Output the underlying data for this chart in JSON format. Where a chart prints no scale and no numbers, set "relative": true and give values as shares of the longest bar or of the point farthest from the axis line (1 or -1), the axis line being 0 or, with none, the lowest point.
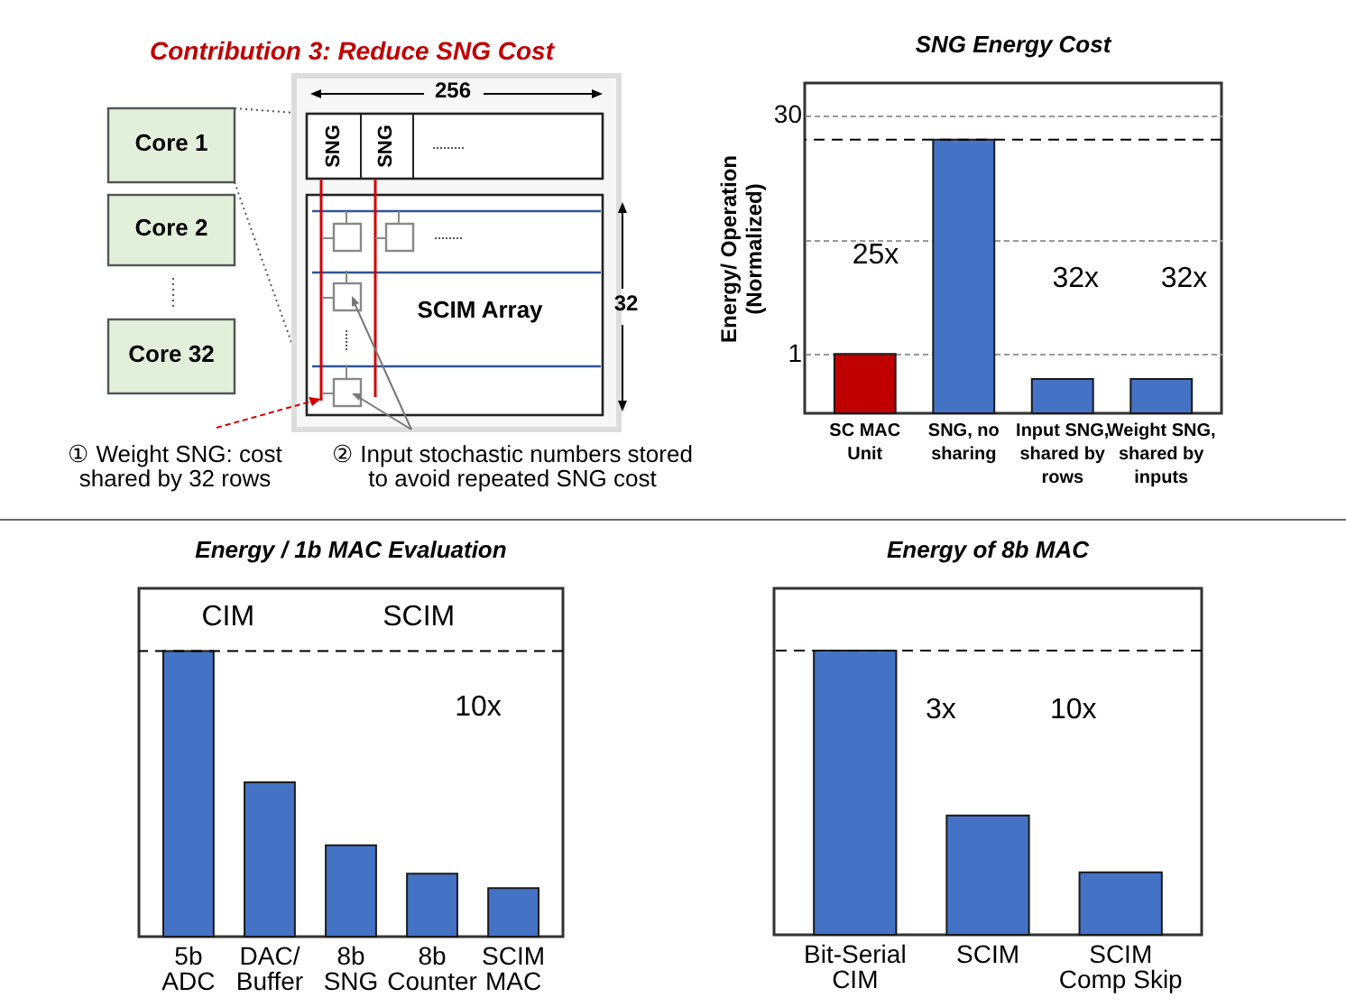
{
  "chart_data": [
    {
      "type": "other",
      "title": "Contribution 3: Reduce SNG Cost",
      "annotations": [
        "Core 1",
        "Core 2",
        "Core 32",
        "256",
        "SNG",
        "SNG",
        "SCIM Array",
        "32",
        "① Weight SNG: cost\nshared by 32 rows",
        "② Input stochastic numbers stored\nto avoid repeated SNG cost"
      ]
    },
    {
      "type": "bar",
      "title": "SNG Energy Cost",
      "ylabel": "Energy/ Operation\n(Normalized)",
      "categories": [
        "SC MAC\nUnit",
        "SNG, no\nsharing",
        "Input SNG,\nshared by\nrows",
        "Weight SNG,\nshared by\ninputs"
      ],
      "values": [
        1,
        21,
        0.7,
        0.7
      ],
      "colors": [
        "#c00000",
        "#4472c4",
        "#4472c4",
        "#4472c4"
      ],
      "log": true,
      "ylim": [
        0.43,
        47
      ],
      "yticks": [
        1,
        {
          "value": 5,
          "label": null
        },
        30
      ],
      "grid": "y",
      "ref_lines": [
        {
          "axis": "y",
          "value": 21,
          "line_style": "dashed"
        }
      ],
      "annotations": [
        "25x",
        "32x",
        "32x"
      ]
    },
    {
      "type": "bar",
      "title": "Energy / 1b MAC Evaluation",
      "categories": [
        "5b\nADC",
        "DAC/\nBuffer",
        "8b\nSNG",
        "8b\nCounter",
        "SCIM\nMAC"
      ],
      "values": [
        1,
        0.54,
        0.32,
        0.22,
        0.17
      ],
      "color": "#4472c4",
      "relative": true,
      "ref_lines": [
        {
          "axis": "y",
          "value": 1,
          "line_style": "dashed"
        }
      ],
      "annotations": [
        "CIM",
        "SCIM",
        "10x"
      ]
    },
    {
      "type": "bar",
      "title": "Energy of 8b MAC",
      "categories": [
        "Bit-Serial\nCIM",
        "SCIM",
        "SCIM\nComp Skip"
      ],
      "values": [
        1,
        0.42,
        0.22
      ],
      "color": "#4472c4",
      "relative": true,
      "ref_lines": [
        {
          "axis": "y",
          "value": 1,
          "line_style": "dashed"
        }
      ],
      "annotations": [
        "3x",
        "10x"
      ]
    }
  ]
}
